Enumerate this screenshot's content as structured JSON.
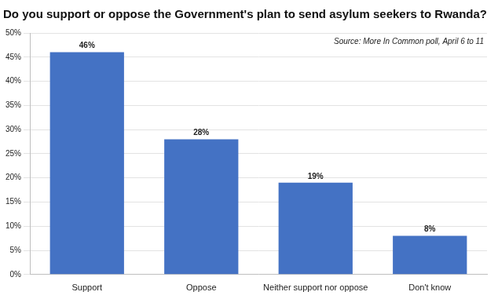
{
  "chart_data": {
    "type": "bar",
    "title": "Do you support or oppose the Government's plan to send asylum seekers to Rwanda?",
    "annotation": "Source: More In Common poll, April 6 to 11",
    "categories": [
      "Support",
      "Oppose",
      "Neither support nor oppose",
      "Don't know"
    ],
    "values": [
      46,
      28,
      19,
      8
    ],
    "value_labels": [
      "46%",
      "28%",
      "19%",
      "8%"
    ],
    "data_labels": true,
    "color": "#4472c4",
    "ylim": [
      0,
      50
    ],
    "yticks": [
      {
        "value": 0,
        "label": "0%"
      },
      {
        "value": 5,
        "label": "5%"
      },
      {
        "value": 10,
        "label": "10%"
      },
      {
        "value": 15,
        "label": "15%"
      },
      {
        "value": 20,
        "label": "20%"
      },
      {
        "value": 25,
        "label": "25%"
      },
      {
        "value": 30,
        "label": "30%"
      },
      {
        "value": 35,
        "label": "35%"
      },
      {
        "value": 40,
        "label": "40%"
      },
      {
        "value": 45,
        "label": "45%"
      },
      {
        "value": 50,
        "label": "50%"
      }
    ],
    "grid": true
  }
}
